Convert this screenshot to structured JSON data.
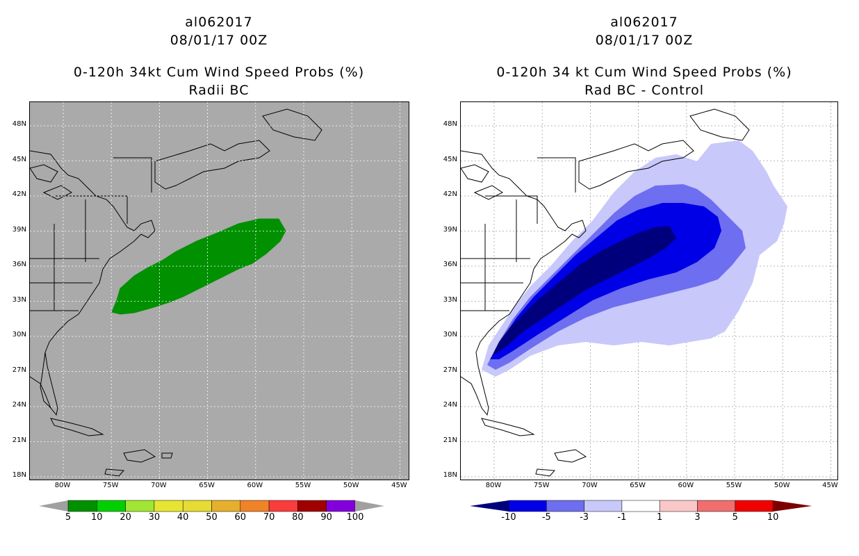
{
  "left_panel": {
    "storm_id": "al062017",
    "datetime": "08/01/17 00Z",
    "title": "0-120h 34kt Cum Wind Speed Probs (%)",
    "subtitle": "Radii BC",
    "background_color": "#aaaaaa",
    "lat_labels": [
      "48N",
      "45N",
      "42N",
      "39N",
      "36N",
      "33N",
      "30N",
      "27N",
      "24N",
      "21N",
      "18N"
    ],
    "lon_labels": [
      "80W",
      "75W",
      "70W",
      "65W",
      "60W",
      "55W",
      "50W",
      "45W"
    ],
    "colorbar": {
      "labels": [
        "5",
        "10",
        "20",
        "30",
        "40",
        "50",
        "60",
        "70",
        "80",
        "90",
        "100"
      ],
      "colors": [
        "#009000",
        "#00d000",
        "#a0e632",
        "#e6e632",
        "#e6dc32",
        "#e6af2d",
        "#f08228",
        "#fa3c3c",
        "#a00000",
        "#8200dc"
      ],
      "end_color": "#a0a0a0"
    }
  },
  "right_panel": {
    "storm_id": "al062017",
    "datetime": "08/01/17 00Z",
    "title": "0-120h 34 kt Cum Wind Speed Probs (%)",
    "subtitle": "Rad BC - Control",
    "background_color": "#ffffff",
    "lat_labels": [
      "48N",
      "45N",
      "42N",
      "39N",
      "36N",
      "33N",
      "30N",
      "27N",
      "24N",
      "21N",
      "18N"
    ],
    "lon_labels": [
      "80W",
      "75W",
      "70W",
      "65W",
      "60W",
      "55W",
      "50W",
      "45W"
    ],
    "colorbar": {
      "labels": [
        "-10",
        "-5",
        "-3",
        "-1",
        "1",
        "3",
        "5",
        "10"
      ],
      "colors": [
        "#00007d",
        "#0000e6",
        "#6e6ef0",
        "#c8c8fa",
        "#ffffff",
        "#fac8c8",
        "#f06e6e",
        "#f00000",
        "#7d0000"
      ]
    }
  }
}
